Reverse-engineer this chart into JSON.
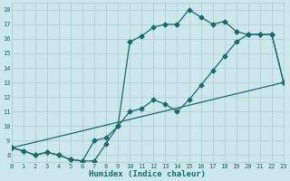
{
  "xlabel": "Humidex (Indice chaleur)",
  "bg_color": "#cce8ec",
  "grid_color": "#aacdd4",
  "line_color": "#1a6b6b",
  "line1_x": [
    0,
    1,
    2,
    3,
    4,
    5,
    6,
    7,
    8,
    9,
    10,
    11,
    12,
    13,
    14,
    15,
    16,
    17,
    18,
    19,
    20,
    21,
    22,
    23
  ],
  "line1_y": [
    8.5,
    8.3,
    8.0,
    8.2,
    8.0,
    7.7,
    7.6,
    7.6,
    8.8,
    10.0,
    11.0,
    11.2,
    11.8,
    11.5,
    11.0,
    11.8,
    12.8,
    13.8,
    14.8,
    15.8,
    16.3,
    16.3,
    16.3,
    13.0
  ],
  "line2_x": [
    0,
    1,
    2,
    3,
    4,
    5,
    6,
    7,
    8,
    9,
    10,
    11,
    12,
    13,
    14,
    15,
    16,
    17,
    18,
    19,
    20,
    21,
    22,
    23
  ],
  "line2_y": [
    8.5,
    8.3,
    8.0,
    8.2,
    8.0,
    7.7,
    7.6,
    9.0,
    9.2,
    10.0,
    15.8,
    16.2,
    16.8,
    17.0,
    17.0,
    18.0,
    17.5,
    17.0,
    17.2,
    16.5,
    16.3,
    16.3,
    16.3,
    13.0
  ],
  "line3_x": [
    0,
    23
  ],
  "line3_y": [
    8.5,
    13.0
  ],
  "xlim": [
    0,
    23
  ],
  "ylim": [
    7.5,
    18.5
  ],
  "yticks": [
    8,
    9,
    10,
    11,
    12,
    13,
    14,
    15,
    16,
    17,
    18
  ],
  "xticks": [
    0,
    1,
    2,
    3,
    4,
    5,
    6,
    7,
    8,
    9,
    10,
    11,
    12,
    13,
    14,
    15,
    16,
    17,
    18,
    19,
    20,
    21,
    22,
    23
  ],
  "xlabel_fontsize": 6.5,
  "tick_fontsize": 5,
  "marker_size": 2.5,
  "line_width": 0.9
}
